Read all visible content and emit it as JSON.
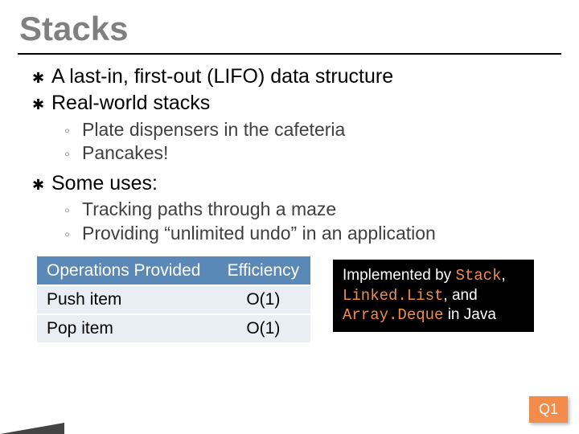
{
  "title": "Stacks",
  "bullets": {
    "b0": "A last-in, first-out (LIFO) data structure",
    "b1": "Real-world stacks",
    "b1_subs": {
      "s0": "Plate dispensers in the cafeteria",
      "s1": "Pancakes!"
    },
    "b2": "Some uses:",
    "b2_subs": {
      "s0": "Tracking paths through a maze",
      "s1": "Providing “unlimited undo” in an application"
    }
  },
  "table": {
    "headers": {
      "c0": "Operations Provided",
      "c1": "Efficiency"
    },
    "rows": {
      "r0": {
        "c0": "Push item",
        "c1": "O(1)"
      },
      "r1": {
        "c0": "Pop item",
        "c1": "O(1)"
      }
    },
    "header_bg": "#5a88b7",
    "header_fg": "#ffffff",
    "cell_bg": "#e9eef5"
  },
  "note": {
    "t0": "Implemented by ",
    "c0": "Stack",
    "t1": ", ",
    "c1": "Linked.List",
    "t2": ", and ",
    "c2": "Array.Deque",
    "t3": " in Java",
    "bg": "#000000",
    "fg": "#ffffff",
    "code_color": "#f28c4a"
  },
  "badge": {
    "text": "Q1",
    "bg": "#f28c4a",
    "fg": "#ffffff"
  },
  "title_color": "#808080"
}
